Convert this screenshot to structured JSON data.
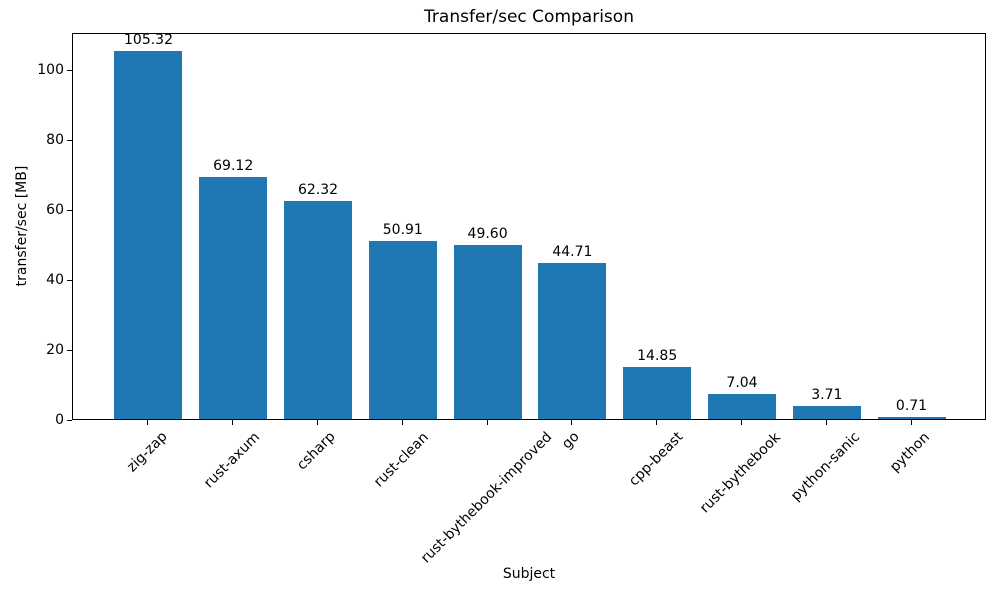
{
  "chart_data": {
    "type": "bar",
    "title": "Transfer/sec Comparison",
    "xlabel": "Subject",
    "ylabel": "transfer/sec [MB]",
    "categories": [
      "zig-zap",
      "rust-axum",
      "csharp",
      "rust-clean",
      "rust-bythebook-improved",
      "go",
      "cpp-beast",
      "rust-bythebook",
      "python-sanic",
      "python"
    ],
    "values": [
      105.32,
      69.12,
      62.32,
      50.91,
      49.6,
      44.71,
      14.85,
      7.04,
      3.71,
      0.71
    ],
    "value_labels": [
      "105.32",
      "69.12",
      "62.32",
      "50.91",
      "49.60",
      "44.71",
      "14.85",
      "7.04",
      "3.71",
      "0.71"
    ],
    "yticks": [
      0,
      20,
      40,
      60,
      80,
      100
    ],
    "ylim": [
      0,
      110.6
    ],
    "x_tick_rotation_deg": 45,
    "grid": false,
    "legend": null,
    "bar_color": "#1f77b4",
    "axis_color": "#000000",
    "text_color": "#000000",
    "background_color": "#ffffff"
  }
}
